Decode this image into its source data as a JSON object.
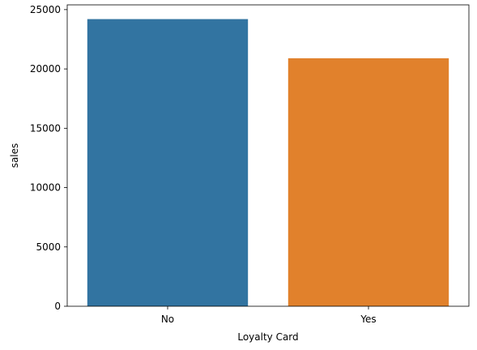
{
  "chart_data": {
    "type": "bar",
    "categories": [
      "No",
      "Yes"
    ],
    "values": [
      24200,
      20900
    ],
    "xlabel": "Loyalty Card",
    "ylabel": "sales",
    "ylim": [
      0,
      25400
    ],
    "yticks": [
      0,
      5000,
      10000,
      15000,
      20000,
      25000
    ],
    "bar_colors": [
      "#3274a1",
      "#e1812c"
    ],
    "grid": false,
    "legend": "none"
  }
}
